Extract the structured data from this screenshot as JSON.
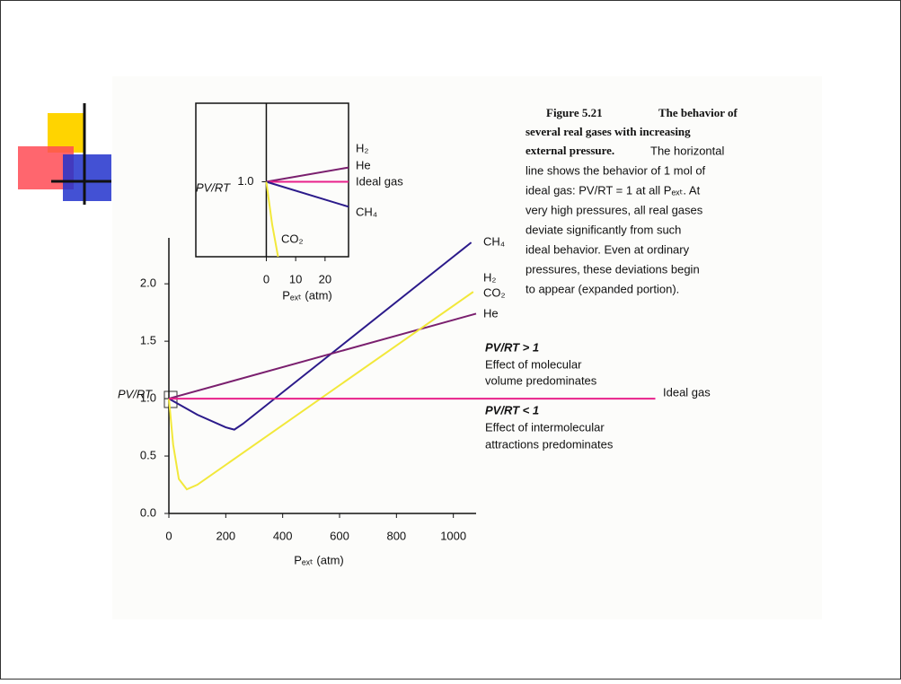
{
  "chart_data": [
    {
      "type": "line",
      "x_label": "Pₑₓₜ (atm)",
      "y_label": "PV/RT",
      "xlim": [
        0,
        1080
      ],
      "ylim": [
        0,
        2.4
      ],
      "xticks": [
        0,
        200,
        400,
        600,
        800,
        1000
      ],
      "yticks": [
        {
          "value": 0,
          "label": "0.0"
        },
        {
          "value": 0.5,
          "label": "0.5"
        },
        {
          "value": 1,
          "label": "1.0"
        },
        {
          "value": 1.5,
          "label": "1.5"
        },
        {
          "value": 2,
          "label": "2.0"
        }
      ],
      "series": [
        {
          "name": "CH₄",
          "color": "#2b1a8a",
          "x": [
            0,
            100,
            200,
            230,
            260,
            1063
          ],
          "values": [
            1,
            0.86,
            0.75,
            0.73,
            0.78,
            2.36
          ]
        },
        {
          "name": "He",
          "color": "#7a1f6e",
          "x": [
            0,
            1080
          ],
          "values": [
            1,
            1.74
          ]
        },
        {
          "name": "CO₂",
          "color": "#f2e83a",
          "x": [
            0,
            15,
            35,
            63,
            100,
            1070
          ],
          "values": [
            1,
            0.6,
            0.3,
            0.21,
            0.25,
            1.93
          ]
        },
        {
          "name": "Ideal gas",
          "color": "#e8208a",
          "x": [
            0,
            1710
          ],
          "values": [
            1,
            1
          ]
        }
      ],
      "annotations": [
        "H₂",
        "PV/RT > 1",
        "Effect of molecular",
        "volume predominates",
        "PV/RT < 1",
        "Effect of intermolecular",
        "attractions predominates"
      ]
    },
    {
      "type": "line",
      "x_label": "Pₑₓₜ (atm)",
      "y_label": "PV/RT",
      "xlim": [
        -24,
        28
      ],
      "ylim": [
        0.79,
        1.22
      ],
      "xticks": [
        0,
        10,
        20
      ],
      "yticks": [
        {
          "value": 1,
          "label": "1.0"
        }
      ],
      "series": [
        {
          "name": "He",
          "color": "#7a1f6e",
          "x": [
            0,
            28
          ],
          "values": [
            1,
            1.04
          ]
        },
        {
          "name": "Ideal gas",
          "color": "#e8208a",
          "x": [
            0,
            28
          ],
          "values": [
            1,
            1
          ]
        },
        {
          "name": "CH₄",
          "color": "#2b1a8a",
          "x": [
            0,
            28
          ],
          "values": [
            1,
            0.93
          ]
        },
        {
          "name": "CO₂",
          "color": "#f2e83a",
          "x": [
            0,
            2,
            4
          ],
          "values": [
            1,
            0.88,
            0.79
          ]
        }
      ],
      "annotations": [
        "H₂"
      ]
    }
  ],
  "caption": {
    "figure": "Figure 5.21",
    "lines": [
      "The behavior of",
      "several real gases with increasing",
      "external pressure.",
      "The horizontal",
      "line shows the behavior of 1 mol of",
      "ideal gas: PV/RT = 1 at all Pₑₓₜ. At",
      "very high pressures, all real gases",
      "deviate significantly from such",
      "ideal behavior. Even at ordinary",
      "pressures, these deviations begin",
      "to appear (expanded portion)."
    ]
  }
}
